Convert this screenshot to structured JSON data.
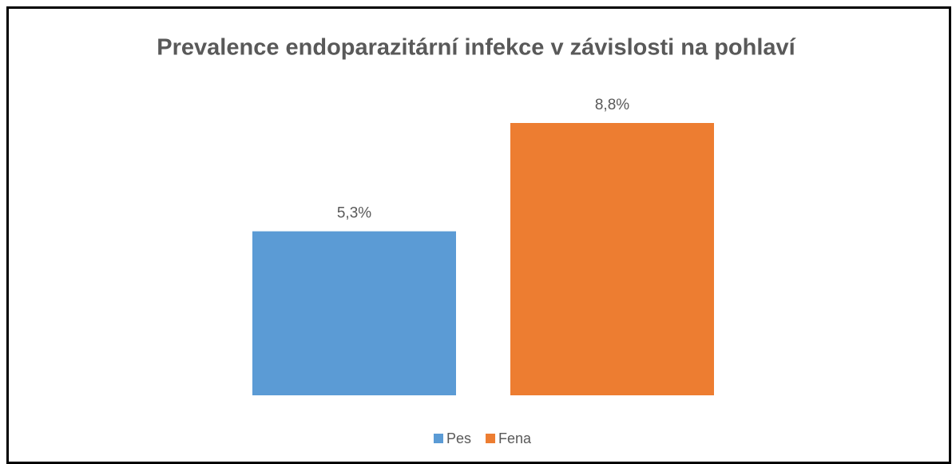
{
  "chart_data": {
    "type": "bar",
    "title": "Prevalence endoparazitární infekce v závislosti na pohlaví",
    "series": [
      {
        "name": "Pes",
        "color": "#5b9bd5",
        "values": [
          5.3
        ],
        "value_labels": [
          "5,3%"
        ]
      },
      {
        "name": "Fena",
        "color": "#ed7d31",
        "values": [
          8.8
        ],
        "value_labels": [
          "8,8%"
        ]
      }
    ],
    "ylim": [
      0,
      10
    ],
    "legend": "bottom"
  }
}
